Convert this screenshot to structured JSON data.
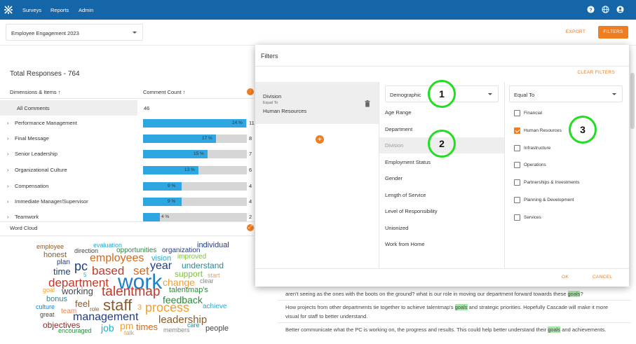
{
  "nav": {
    "items": [
      "Surveys",
      "Reports",
      "Admin"
    ],
    "icons": [
      "help-icon",
      "globe-icon",
      "account-icon"
    ]
  },
  "header": {
    "survey": "Employee Engagement 2023",
    "export_label": "EXPORT",
    "filters_label": "FILTERS"
  },
  "summary": {
    "total_responses": "Total Responses - 764"
  },
  "table": {
    "col_dimensions": "Dimensions & Items",
    "col_comment_count": "Comment Count",
    "all_comments": {
      "label": "All Comments",
      "count": "46"
    },
    "rows": [
      {
        "label": "Performance Management",
        "pct": 24,
        "pct_label": "24 %",
        "count": "11"
      },
      {
        "label": "Final Message",
        "pct": 17,
        "pct_label": "17 %",
        "count": "8"
      },
      {
        "label": "Senior Leadership",
        "pct": 15,
        "pct_label": "15 %",
        "count": "7"
      },
      {
        "label": "Organizational Culture",
        "pct": 13,
        "pct_label": "13 %",
        "count": "6"
      },
      {
        "label": "Compensation",
        "pct": 9,
        "pct_label": "9 %",
        "count": "4"
      },
      {
        "label": "Immediate Manager/Supervisor",
        "pct": 9,
        "pct_label": "9 %",
        "count": "4"
      },
      {
        "label": "Teamwork",
        "pct": 4,
        "pct_label": "4 %",
        "count": "2"
      }
    ]
  },
  "word_cloud": {
    "title": "Word Cloud",
    "words": [
      {
        "t": "employee",
        "c": "#8a5a2b"
      },
      {
        "t": "evaluation",
        "c": "#2aa9c9"
      },
      {
        "t": "individual",
        "c": "#1f3c88"
      },
      {
        "t": "direction",
        "c": "#444"
      },
      {
        "t": "opportunities",
        "c": "#2a8a3a"
      },
      {
        "t": "organization",
        "c": "#1f3c88"
      },
      {
        "t": "honest",
        "c": "#8a5a2b"
      },
      {
        "t": "employees",
        "c": "#d2691e"
      },
      {
        "t": "improved",
        "c": "#7cbf3a"
      },
      {
        "t": "plan",
        "c": "#1f3c88"
      },
      {
        "t": "vision",
        "c": "#2aa9c9"
      },
      {
        "t": "pc",
        "c": "#1f3c88"
      },
      {
        "t": "year",
        "c": "#1f3c88"
      },
      {
        "t": "understand",
        "c": "#2a8a9a"
      },
      {
        "t": "time",
        "c": "#1f3c88"
      },
      {
        "t": "based",
        "c": "#c0392b"
      },
      {
        "t": "set",
        "c": "#d2691e"
      },
      {
        "t": "support",
        "c": "#7cbf3a"
      },
      {
        "t": "start",
        "c": "#f0a050"
      },
      {
        "t": "5",
        "c": "#2aa9c9"
      },
      {
        "t": "department",
        "c": "#c0392b"
      },
      {
        "t": "work",
        "c": "#1f7fc9"
      },
      {
        "t": "change",
        "c": "#f0a030"
      },
      {
        "t": "clear",
        "c": "#888"
      },
      {
        "t": "goal",
        "c": "#f0a030"
      },
      {
        "t": "working",
        "c": "#444"
      },
      {
        "t": "talentmap",
        "c": "#c0392b"
      },
      {
        "t": "talentmap's",
        "c": "#2a8a3a"
      },
      {
        "t": "bonus",
        "c": "#2a8a9a"
      },
      {
        "t": "feedback",
        "c": "#2a8a3a"
      },
      {
        "t": "culture",
        "c": "#1f7fc9"
      },
      {
        "t": "feel",
        "c": "#8a5a2b"
      },
      {
        "t": "role",
        "c": "#8a5a2b"
      },
      {
        "t": "staff",
        "c": "#8a5a2b"
      },
      {
        "t": "3",
        "c": "#f0a030"
      },
      {
        "t": "process",
        "c": "#f0a030"
      },
      {
        "t": "achieve",
        "c": "#2aa9c9"
      },
      {
        "t": "team",
        "c": "#f08050"
      },
      {
        "t": "great",
        "c": "#444"
      },
      {
        "t": "management",
        "c": "#1f3c88"
      },
      {
        "t": "leadership",
        "c": "#8a5a2b"
      },
      {
        "t": "objectives",
        "c": "#8a2b2b"
      },
      {
        "t": "pm",
        "c": "#f0a030"
      },
      {
        "t": "job",
        "c": "#2aa9c9"
      },
      {
        "t": "times",
        "c": "#d2691e"
      },
      {
        "t": "care",
        "c": "#2a8a9a"
      },
      {
        "t": "people",
        "c": "#444"
      },
      {
        "t": "encouraged",
        "c": "#2a8a3a"
      },
      {
        "t": "talk",
        "c": "#f0a030"
      },
      {
        "t": "members",
        "c": "#888"
      }
    ]
  },
  "comments": [
    {
      "pre": "aren't seeing as the ones with the boots on the ground? what is our role in moving our department forward towards these ",
      "hl": "goals",
      "post": "?"
    },
    {
      "pre": "How projects from other departments tie together to achieve talentmap's ",
      "hl": "goals",
      "post": " and strategic priorities. Hopefully Cascade will make it more visual for staff to better understand."
    },
    {
      "pre": "Better communicate what the PC is working on, the progress and results. This could help better understand their ",
      "hl": "goals",
      "post": " and achievements."
    }
  ],
  "modal": {
    "title": "Filters",
    "clear_label": "CLEAR FILTERS",
    "active_filter": {
      "field": "Division",
      "operator": "Equal To",
      "value": "Human Resources"
    },
    "category_select": "Demographic",
    "categories": [
      "Age Range",
      "Department",
      "Division",
      "Employment Status",
      "Gender",
      "Length of Service",
      "Level of Responsibility",
      "Unionized",
      "Work from Home"
    ],
    "active_category_index": 2,
    "operator_select": "Equal To",
    "values": [
      {
        "label": "Financial",
        "checked": false
      },
      {
        "label": "Human Resources",
        "checked": true
      },
      {
        "label": "Infrastructure",
        "checked": false
      },
      {
        "label": "Operations",
        "checked": false
      },
      {
        "label": "Partnerships & Investments",
        "checked": false
      },
      {
        "label": "Planning & Development",
        "checked": false
      },
      {
        "label": "Services",
        "checked": false
      }
    ],
    "ok_label": "OK",
    "cancel_label": "CANCEL"
  },
  "annotations": [
    "1",
    "2",
    "3"
  ],
  "colors": {
    "topbar": "#1565a9",
    "accent": "#ef7d22",
    "bar": "#2ea6e1",
    "annotation": "#22dd22"
  }
}
